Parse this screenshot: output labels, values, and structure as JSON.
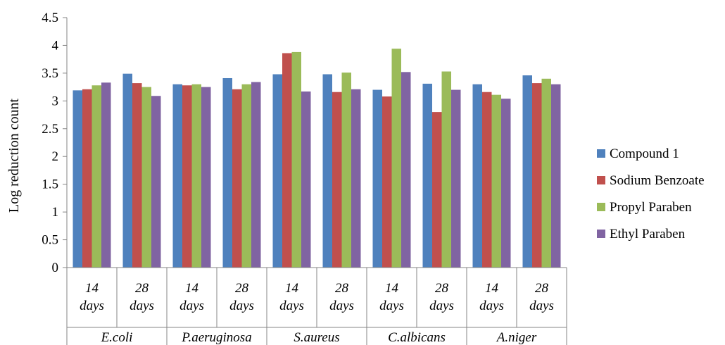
{
  "chart_data": {
    "type": "bar",
    "title": "",
    "xlabel": "",
    "ylabel": "Log reduction count",
    "ylim": [
      0,
      4.5
    ],
    "yticks": [
      "0",
      "0.5",
      "1",
      "1.5",
      "2",
      "2.5",
      "3",
      "3.5",
      "4",
      "4.5"
    ],
    "grid": false,
    "legend_position": "right",
    "groups": [
      "E.coli",
      "P.aeruginosa",
      "S.aureus",
      "C.albicans",
      "A.niger"
    ],
    "categories": [
      [
        "14",
        "days"
      ],
      [
        "28",
        "days"
      ],
      [
        "14",
        "days"
      ],
      [
        "28",
        "days"
      ],
      [
        "14",
        "days"
      ],
      [
        "28",
        "days"
      ],
      [
        "14",
        "days"
      ],
      [
        "28",
        "days"
      ],
      [
        "14",
        "days"
      ],
      [
        "28",
        "days"
      ]
    ],
    "series": [
      {
        "name": "Compound 1",
        "color": "#4f81bd",
        "values": [
          3.19,
          3.49,
          3.3,
          3.41,
          3.48,
          3.48,
          3.2,
          3.31,
          3.3,
          3.46
        ]
      },
      {
        "name": "Sodium Benzoate",
        "color": "#c0504d",
        "values": [
          3.21,
          3.32,
          3.28,
          3.21,
          3.86,
          3.16,
          3.08,
          2.8,
          3.16,
          3.32
        ]
      },
      {
        "name": "Propyl Paraben",
        "color": "#9bbb59",
        "values": [
          3.28,
          3.25,
          3.3,
          3.3,
          3.88,
          3.51,
          3.94,
          3.53,
          3.11,
          3.4
        ]
      },
      {
        "name": "Ethyl Paraben",
        "color": "#8064a2",
        "values": [
          3.33,
          3.09,
          3.25,
          3.34,
          3.17,
          3.21,
          3.52,
          3.2,
          3.04,
          3.3
        ]
      }
    ]
  }
}
